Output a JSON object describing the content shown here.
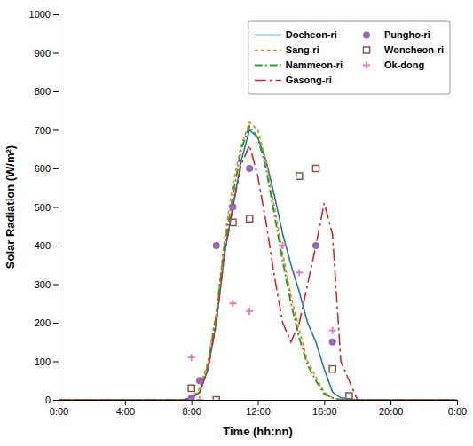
{
  "chart_data": {
    "type": "line",
    "xlabel": "Time (hh:nn)",
    "ylabel": "Solar Radiation (W/m²)",
    "xlim": [
      0,
      24
    ],
    "xticks": [
      {
        "value": 0,
        "label": "0:00"
      },
      {
        "value": 4,
        "label": "4:00"
      },
      {
        "value": 8,
        "label": "8:00"
      },
      {
        "value": 12,
        "label": "12:00"
      },
      {
        "value": 16,
        "label": "16:00"
      },
      {
        "value": 20,
        "label": "20:00"
      },
      {
        "value": 24,
        "label": "0:00"
      }
    ],
    "ylim": [
      0,
      1000
    ],
    "yticks": [
      0,
      100,
      200,
      300,
      400,
      500,
      600,
      700,
      800,
      900,
      1000
    ],
    "grid": false,
    "legend": "upper right",
    "x": [
      0,
      1,
      2,
      3,
      4,
      5,
      6,
      7,
      7.5,
      8,
      8.5,
      9,
      9.5,
      10,
      10.5,
      11,
      11.5,
      12,
      12.5,
      13,
      13.5,
      14,
      14.5,
      15,
      15.5,
      16,
      16.5,
      17,
      18,
      19,
      20,
      21,
      22,
      23,
      24
    ],
    "series": [
      {
        "name": "Docheon-ri",
        "line_style": "solid",
        "values": [
          0,
          0,
          0,
          0,
          0,
          0,
          0,
          0,
          0,
          5,
          20,
          80,
          200,
          380,
          500,
          620,
          700,
          680,
          620,
          530,
          430,
          350,
          280,
          200,
          150,
          80,
          20,
          5,
          0,
          0,
          0,
          0,
          0,
          0,
          0
        ]
      },
      {
        "name": "Sang-ri",
        "line_style": "dashed",
        "values": [
          0,
          0,
          0,
          0,
          0,
          0,
          0,
          0,
          0,
          5,
          30,
          100,
          230,
          420,
          560,
          660,
          720,
          700,
          620,
          500,
          380,
          270,
          180,
          100,
          60,
          20,
          5,
          0,
          0,
          0,
          0,
          0,
          0,
          0,
          0
        ]
      },
      {
        "name": "Nammeon-ri",
        "line_style": "dashdot",
        "values": [
          0,
          0,
          0,
          0,
          0,
          0,
          0,
          0,
          0,
          5,
          20,
          90,
          220,
          400,
          530,
          650,
          710,
          680,
          600,
          480,
          360,
          250,
          160,
          90,
          50,
          15,
          5,
          0,
          0,
          0,
          0,
          0,
          0,
          0,
          0
        ]
      },
      {
        "name": "Gasong-ri",
        "line_style": "longdashdot",
        "values": [
          0,
          0,
          0,
          0,
          0,
          0,
          0,
          0,
          0,
          5,
          20,
          80,
          200,
          380,
          500,
          610,
          660,
          580,
          460,
          320,
          200,
          150,
          200,
          300,
          400,
          510,
          430,
          100,
          0,
          0,
          0,
          0,
          0,
          0,
          0
        ]
      },
      {
        "name": "Pungho-ri",
        "type": "scatter",
        "marker": "circle",
        "x": [
          8.0,
          8.5,
          9.5,
          10.5,
          11.5,
          15.5,
          16.5
        ],
        "values": [
          5,
          50,
          400,
          500,
          600,
          400,
          150
        ]
      },
      {
        "name": "Woncheon-ri",
        "type": "scatter",
        "marker": "square",
        "x": [
          8.0,
          9.5,
          10.5,
          11.5,
          14.5,
          15.5,
          16.5,
          17.5
        ],
        "values": [
          30,
          0,
          460,
          470,
          580,
          600,
          80,
          10
        ]
      },
      {
        "name": "Ok-dong",
        "type": "scatter",
        "marker": "plus",
        "x": [
          8.0,
          8.5,
          10.5,
          11.5,
          13.5,
          14.5,
          16.5
        ],
        "values": [
          110,
          0,
          250,
          230,
          400,
          330,
          180
        ]
      }
    ]
  }
}
